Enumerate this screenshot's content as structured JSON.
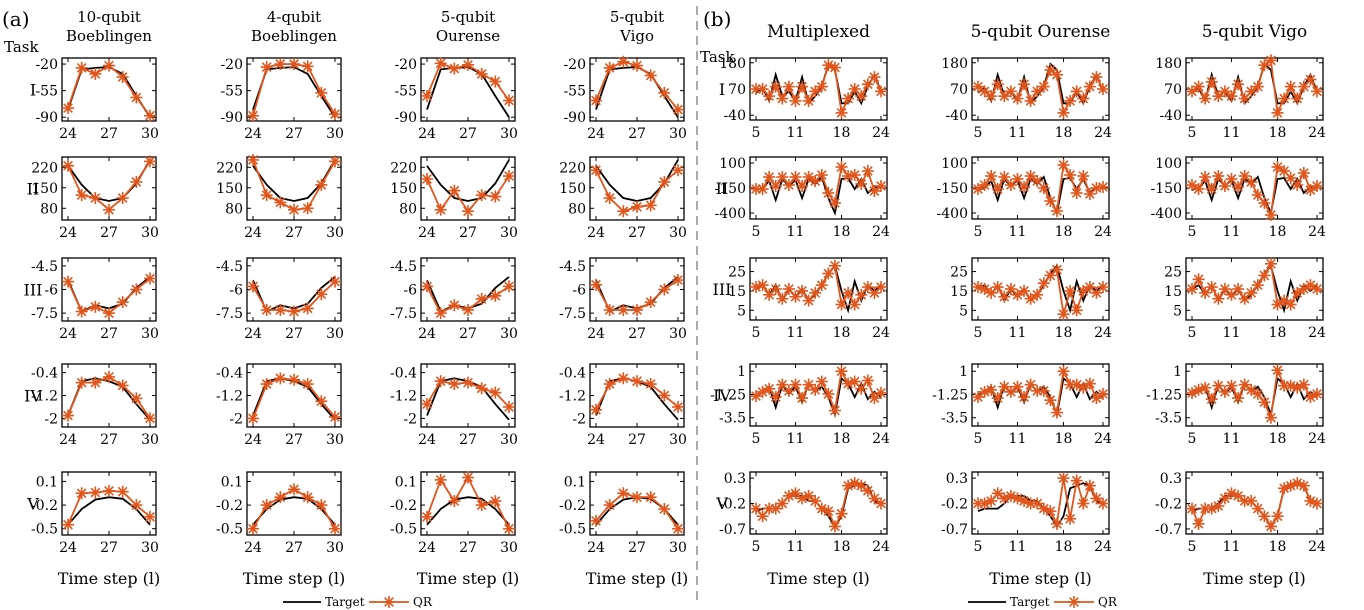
{
  "panel_a": {
    "label": "(a)",
    "task_label": "Task",
    "columns": [
      "10-qubit\nBoeblingen",
      "4-qubit\nBoeblingen",
      "5-qubit\nOurense",
      "5-qubit\nVigo"
    ],
    "rows": [
      "I",
      "II",
      "III",
      "IV",
      "V"
    ],
    "x_ticks": [
      24,
      27,
      30
    ],
    "xlabel": "Time step (l)"
  },
  "panel_b": {
    "label": "(b)",
    "task_label": "Task",
    "columns": [
      "Multiplexed",
      "5-qubit Ourense",
      "5-qubit Vigo"
    ],
    "rows": [
      "I",
      "II",
      "III",
      "IV",
      "V"
    ],
    "x_ticks": [
      5,
      11,
      18,
      24
    ],
    "xlabel": "Time step (l)"
  },
  "legend": {
    "target": "Target",
    "qr": "QR"
  },
  "colors": {
    "target": "#000000",
    "qr": "#e0561c",
    "divider": "#aaaaaa"
  },
  "chart_data": [
    {
      "panel": "a",
      "type": "line",
      "x": [
        24,
        25,
        26,
        27,
        28,
        29,
        30
      ],
      "rows": [
        {
          "task": "I",
          "ylim": [
            -95,
            -12
          ],
          "yticks": [
            -20,
            -55,
            -90
          ],
          "target": [
            -80,
            -27,
            -25,
            -24,
            -33,
            -62,
            -90
          ],
          "qr": {
            "10-qubit Boeblingen": [
              -78,
              -25,
              -33,
              -22,
              -37,
              -64,
              -88
            ],
            "4-qubit Boeblingen": [
              -88,
              -24,
              -20,
              -20,
              -23,
              -58,
              -86
            ],
            "5-qubit Ourense": [
              -62,
              -19,
              -26,
              -21,
              -33,
              -43,
              -68
            ],
            "5-qubit Vigo": [
              -68,
              -25,
              -17,
              -22,
              -35,
              -58,
              -80
            ]
          }
        },
        {
          "task": "II",
          "ylim": [
            40,
            255
          ],
          "yticks": [
            80,
            150,
            220
          ],
          "target": [
            225,
            160,
            115,
            105,
            115,
            165,
            245
          ],
          "qr": {
            "10-qubit Boeblingen": [
              225,
              125,
              115,
              75,
              115,
              170,
              240
            ],
            "4-qubit Boeblingen": [
              245,
              125,
              100,
              75,
              80,
              160,
              240
            ],
            "5-qubit Ourense": [
              180,
              75,
              140,
              70,
              125,
              120,
              190
            ],
            "5-qubit Vigo": [
              210,
              115,
              70,
              85,
              90,
              170,
              210
            ]
          }
        },
        {
          "task": "III",
          "ylim": [
            -8.0,
            -4.0
          ],
          "yticks": [
            -4.5,
            -6,
            -7.5
          ],
          "target": [
            -5.4,
            -7.4,
            -7.0,
            -7.2,
            -6.9,
            -5.9,
            -5.2
          ],
          "qr": {
            "10-qubit Boeblingen": [
              -5.5,
              -7.4,
              -7.1,
              -7.5,
              -6.8,
              -6.0,
              -5.3
            ],
            "4-qubit Boeblingen": [
              -5.8,
              -7.3,
              -7.3,
              -7.4,
              -7.2,
              -6.3,
              -5.5
            ],
            "5-qubit Ourense": [
              -5.8,
              -7.5,
              -7.0,
              -7.3,
              -6.6,
              -6.4,
              -5.8
            ],
            "5-qubit Vigo": [
              -5.7,
              -7.3,
              -7.3,
              -7.3,
              -6.8,
              -6.0,
              -5.4
            ]
          }
        },
        {
          "task": "IV",
          "ylim": [
            -2.3,
            -0.1
          ],
          "yticks": [
            -0.4,
            -1.2,
            -2
          ],
          "target": [
            -1.9,
            -0.7,
            -0.6,
            -0.7,
            -0.9,
            -1.5,
            -2.05
          ],
          "qr": {
            "10-qubit Boeblingen": [
              -1.9,
              -0.75,
              -0.75,
              -0.55,
              -0.85,
              -1.3,
              -2.0
            ],
            "4-qubit Boeblingen": [
              -2.0,
              -0.8,
              -0.6,
              -0.65,
              -0.8,
              -1.4,
              -1.95
            ],
            "5-qubit Ourense": [
              -1.5,
              -0.7,
              -0.8,
              -0.75,
              -0.95,
              -1.1,
              -1.6
            ],
            "5-qubit Vigo": [
              -1.7,
              -0.8,
              -0.6,
              -0.7,
              -0.8,
              -1.2,
              -1.6
            ]
          }
        },
        {
          "task": "V",
          "ylim": [
            -0.58,
            0.22
          ],
          "yticks": [
            0.1,
            -0.2,
            -0.5
          ],
          "target": [
            -0.45,
            -0.25,
            -0.13,
            -0.1,
            -0.12,
            -0.25,
            -0.45
          ],
          "qr": {
            "10-qubit Boeblingen": [
              -0.45,
              -0.05,
              -0.04,
              -0.02,
              -0.03,
              -0.2,
              -0.35
            ],
            "4-qubit Boeblingen": [
              -0.5,
              -0.2,
              -0.1,
              0.0,
              -0.1,
              -0.2,
              -0.5
            ],
            "5-qubit Ourense": [
              -0.35,
              0.12,
              -0.15,
              0.15,
              -0.2,
              -0.15,
              -0.5
            ],
            "5-qubit Vigo": [
              -0.4,
              -0.2,
              -0.05,
              -0.1,
              -0.1,
              -0.25,
              -0.5
            ]
          }
        }
      ]
    },
    {
      "panel": "b",
      "type": "line",
      "x": [
        5,
        6,
        7,
        8,
        9,
        10,
        11,
        12,
        13,
        14,
        15,
        16,
        17,
        18,
        19,
        20,
        21,
        22,
        23,
        24
      ],
      "rows": [
        {
          "task": "I",
          "ylim": [
            -60,
            200
          ],
          "yticks": [
            180,
            70,
            -40
          ],
          "target": [
            55,
            75,
            20,
            130,
            40,
            60,
            20,
            120,
            10,
            40,
            80,
            175,
            150,
            10,
            10,
            60,
            10,
            80,
            130,
            60
          ],
          "qr": {
            "Multiplexed": [
              70,
              70,
              40,
              80,
              30,
              80,
              20,
              80,
              20,
              60,
              80,
              170,
              160,
              -30,
              30,
              70,
              40,
              90,
              120,
              60
            ],
            "5-qubit Ourense": [
              80,
              60,
              40,
              90,
              40,
              60,
              30,
              90,
              20,
              60,
              80,
              150,
              130,
              -30,
              20,
              60,
              30,
              80,
              120,
              70
            ],
            "5-qubit Vigo": [
              60,
              80,
              30,
              100,
              40,
              60,
              40,
              90,
              30,
              60,
              80,
              170,
              190,
              -30,
              30,
              80,
              30,
              80,
              110,
              60
            ]
          }
        },
        {
          "task": "II",
          "ylim": [
            -460,
            160
          ],
          "yticks": [
            100,
            -150,
            -400
          ],
          "target": [
            -170,
            -150,
            -80,
            -270,
            -60,
            -130,
            -70,
            -250,
            -60,
            -110,
            -40,
            -250,
            -400,
            -60,
            -50,
            -160,
            -60,
            -200,
            -140,
            -150
          ],
          "qr": {
            "Multiplexed": [
              -160,
              -160,
              -40,
              -130,
              -40,
              -120,
              -40,
              -130,
              -40,
              -80,
              -20,
              -200,
              -300,
              60,
              -30,
              -20,
              -110,
              20,
              -180,
              -130
            ],
            "5-qubit Ourense": [
              -160,
              -120,
              -30,
              -160,
              -40,
              -120,
              -60,
              -140,
              -30,
              -80,
              -150,
              -280,
              -380,
              80,
              -20,
              -200,
              -30,
              -210,
              -150,
              -140
            ],
            "5-qubit Vigo": [
              -120,
              -160,
              -40,
              -160,
              -30,
              -130,
              -60,
              -140,
              -30,
              -90,
              -220,
              -300,
              -420,
              60,
              20,
              -50,
              -120,
              0,
              -170,
              -130
            ]
          }
        },
        {
          "task": "III",
          "ylim": [
            0,
            32
          ],
          "yticks": [
            25,
            15,
            5
          ],
          "target": [
            16,
            18,
            13,
            18,
            10,
            16,
            12,
            16,
            10,
            13,
            18,
            24,
            28,
            15,
            5,
            20,
            10,
            18,
            15,
            18
          ],
          "qr": {
            "Multiplexed": [
              17,
              18,
              13,
              16,
              11,
              16,
              12,
              15,
              10,
              14,
              18,
              24,
              28,
              8,
              14,
              8,
              13,
              17,
              14,
              17
            ],
            "5-qubit Ourense": [
              17,
              16,
              14,
              17,
              12,
              16,
              13,
              15,
              11,
              13,
              19,
              23,
              26,
              3,
              15,
              5,
              15,
              17,
              14,
              17
            ],
            "5-qubit Vigo": [
              16,
              21,
              14,
              17,
              11,
              16,
              13,
              16,
              11,
              14,
              18,
              23,
              29,
              8,
              10,
              8,
              14,
              16,
              18,
              16
            ]
          }
        },
        {
          "task": "IV",
          "ylim": [
            -4.3,
            1.7
          ],
          "yticks": [
            1,
            -1.25,
            -3.5
          ],
          "target": [
            -1.3,
            -1.0,
            -0.5,
            -2.5,
            -0.3,
            -1.2,
            -0.5,
            -2.0,
            -0.2,
            -1.0,
            -0.5,
            -1.5,
            -3.2,
            0.3,
            -0.2,
            -1.5,
            -0.2,
            -1.7,
            -1.0,
            -1.5
          ],
          "qr": {
            "Multiplexed": [
              -1.4,
              -1.0,
              -0.7,
              -1.5,
              -0.3,
              -0.9,
              -0.3,
              -1.6,
              -0.3,
              -0.8,
              0.0,
              -1.2,
              -2.8,
              1.0,
              -0.2,
              0.0,
              -0.7,
              0.1,
              -1.6,
              -1.1
            ],
            "5-qubit Ourense": [
              -1.5,
              -1.0,
              -0.8,
              -1.6,
              -0.5,
              -1.0,
              -0.5,
              -1.5,
              -0.3,
              -0.9,
              -0.9,
              -1.8,
              -3.0,
              1.0,
              -0.3,
              -0.3,
              -0.6,
              -0.2,
              -1.6,
              -1.2
            ],
            "5-qubit Vigo": [
              -1.1,
              -0.8,
              -0.6,
              -1.7,
              -0.4,
              -1.0,
              -0.4,
              -1.6,
              -0.3,
              -0.8,
              -1.2,
              -2.0,
              -3.5,
              1.1,
              -0.4,
              -0.4,
              -0.6,
              -0.3,
              -1.5,
              -1.2
            ]
          }
        },
        {
          "task": "V",
          "ylim": [
            -0.8,
            0.42
          ],
          "yticks": [
            0.3,
            -0.2,
            -0.7
          ],
          "target": [
            -0.35,
            -0.3,
            -0.3,
            -0.3,
            -0.2,
            -0.05,
            -0.05,
            -0.05,
            -0.15,
            -0.15,
            -0.3,
            -0.45,
            -0.65,
            -0.45,
            0.1,
            0.15,
            0.2,
            0.15,
            -0.15,
            -0.2
          ],
          "qr": {
            "Multiplexed": [
              -0.3,
              -0.45,
              -0.3,
              -0.3,
              -0.2,
              -0.05,
              0.0,
              -0.1,
              -0.05,
              -0.15,
              -0.3,
              -0.35,
              -0.65,
              -0.4,
              0.15,
              0.2,
              0.15,
              0.05,
              -0.1,
              -0.2
            ],
            "5-qubit Ourense": [
              -0.2,
              -0.2,
              -0.15,
              0.0,
              -0.1,
              -0.05,
              -0.1,
              -0.15,
              -0.2,
              -0.2,
              -0.3,
              -0.35,
              -0.6,
              0.3,
              -0.5,
              0.25,
              -0.2,
              0.15,
              -0.1,
              -0.2
            ],
            "5-qubit Vigo": [
              -0.3,
              -0.6,
              -0.3,
              -0.3,
              -0.25,
              -0.1,
              0.0,
              -0.05,
              -0.15,
              -0.15,
              -0.3,
              -0.45,
              -0.65,
              -0.45,
              0.1,
              0.15,
              0.2,
              0.15,
              -0.15,
              -0.2
            ]
          }
        }
      ]
    }
  ]
}
